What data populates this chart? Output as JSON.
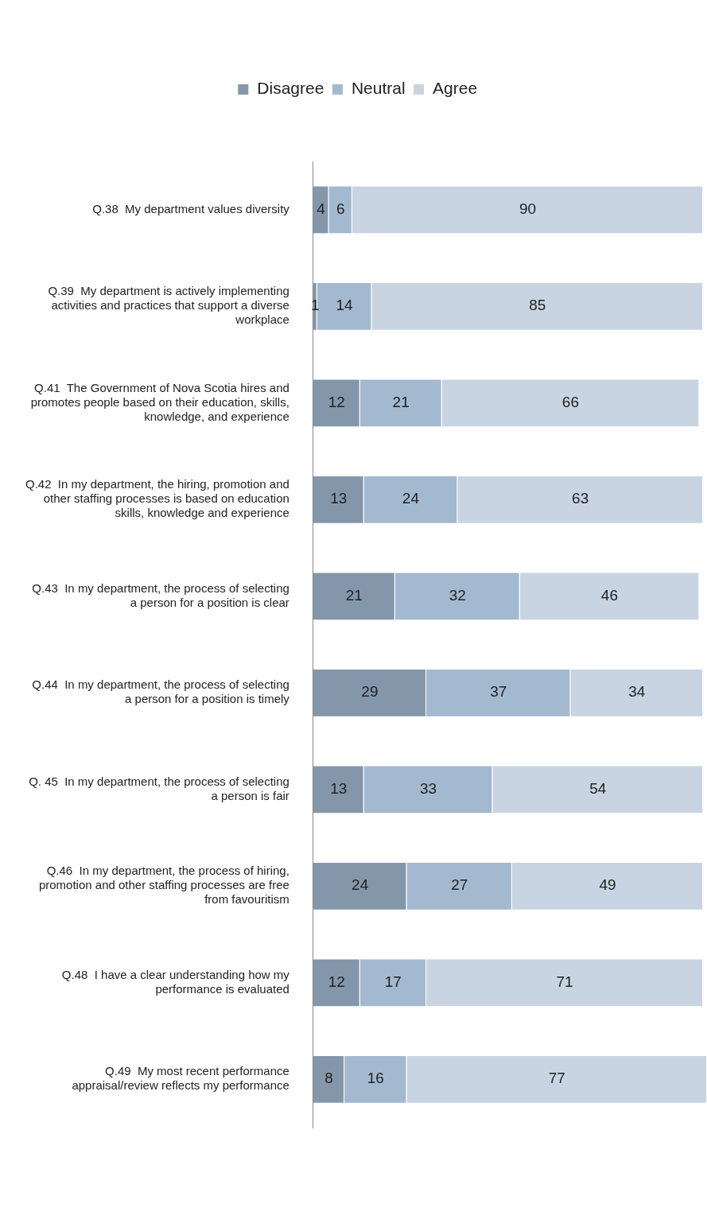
{
  "chart_data": {
    "type": "bar",
    "orientation": "horizontal",
    "stacked": true,
    "data_labels": true,
    "legend": "top",
    "tick_labels": "y",
    "xlim": [
      0,
      101
    ],
    "categories": [
      "Q.38  My department values diversity",
      "Q.39  My department is actively implementing activities and practices that support a diverse workplace",
      "Q.41  The Government of Nova Scotia hires and promotes people based on their education, skills, knowledge, and experience",
      "Q.42  In my department, the hiring, promotion and other staffing processes is based on education skills, knowledge and experience",
      "Q.43  In my department, the process of selecting a person for a position is clear",
      "Q.44  In my department, the process of selecting a person for a position is timely",
      "Q. 45  In my department, the process of selecting a person is fair",
      "Q.46  In my department, the process of hiring, promotion and other staffing processes are free from favouritism",
      "Q.48  I have a clear understanding how my performance is evaluated",
      "Q.49  My most recent performance appraisal/review reflects my performance"
    ],
    "series": [
      {
        "name": "Disagree",
        "color": "#8497aa",
        "values": [
          4,
          1,
          12,
          13,
          21,
          29,
          13,
          24,
          12,
          8
        ]
      },
      {
        "name": "Neutral",
        "color": "#a3b9d0",
        "values": [
          6,
          14,
          21,
          24,
          32,
          37,
          33,
          27,
          17,
          16
        ]
      },
      {
        "name": "Agree",
        "color": "#c8d4e1",
        "values": [
          90,
          85,
          66,
          63,
          46,
          34,
          54,
          49,
          71,
          77
        ]
      }
    ]
  }
}
